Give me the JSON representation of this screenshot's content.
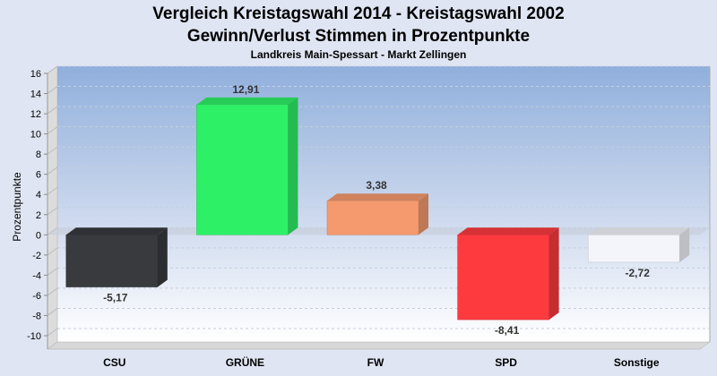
{
  "chart_data": {
    "type": "bar",
    "title": "Vergleich Kreistagswahl 2014 - Kreistagswahl 2002",
    "subtitle": "Gewinn/Verlust Stimmen in Prozentpunkte",
    "subsubtitle": "Landkreis Main-Spessart - Markt Zellingen",
    "ylabel": "Prozentpunkte",
    "xlabel": "",
    "ylim": [
      -10,
      16
    ],
    "yticks": [
      16,
      14,
      12,
      10,
      8,
      6,
      4,
      2,
      0,
      -2,
      -4,
      -6,
      -8,
      -10
    ],
    "categories": [
      "CSU",
      "GRÜNE",
      "FW",
      "SPD",
      "Sonstige"
    ],
    "values": [
      -5.17,
      12.91,
      3.38,
      -8.41,
      -2.72
    ],
    "value_labels": [
      "-5,17",
      "12,91",
      "3,38",
      "-8,41",
      "-2,72"
    ],
    "colors": [
      "#393a3e",
      "#2ef067",
      "#f59a6e",
      "#fd3a3e",
      "#f3f5fb"
    ],
    "grid": true
  }
}
